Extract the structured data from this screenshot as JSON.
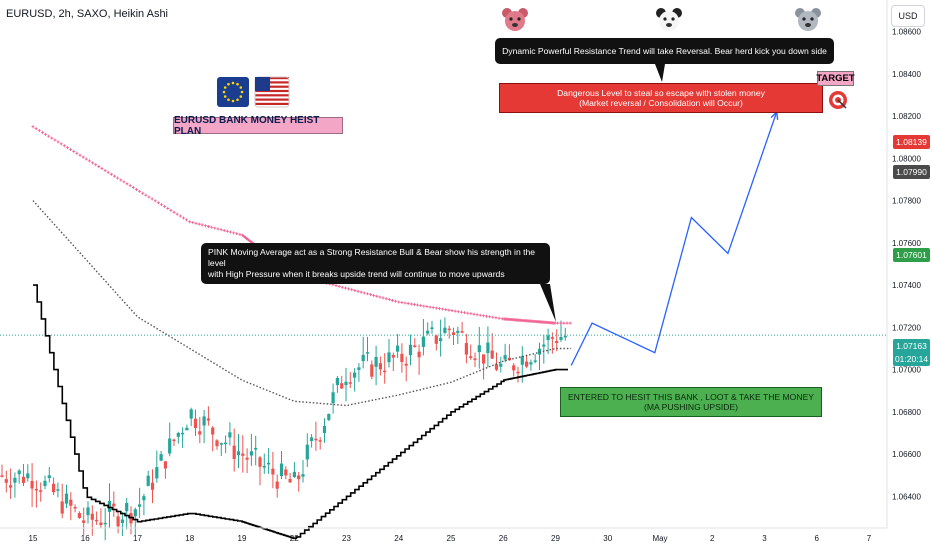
{
  "header": {
    "symbol_title": "EURUSD, 2h, SAXO, Heikin Ashi",
    "currency": "USD"
  },
  "annotations": {
    "plan_title": "EURUSD BANK MONEY HEIST PLAN",
    "resistance_note": "Dynamic Powerful Resistance Trend will take Reversal. Bear herd kick you down side",
    "danger_line1": "Dangerous Level to steal so escape with stolen money",
    "danger_line2": "(Market reversal / Consolidation will Occur)",
    "pink_ma_line1": "PINK Moving Average act as a Strong Resistance Bull & Bear show his strength in the level",
    "pink_ma_line2": "with High Pressure when it breaks upside trend will continue to move upwards",
    "entry_line1": "ENTERED TO HESIT THIS BANK , LOOT & TAKE THE MONEY",
    "entry_line2": "(MA PUSHING UPSIDE)",
    "target": "TARGET"
  },
  "price_tags": {
    "target_price": "1.08139",
    "danger_price": "1.07990",
    "pink_ma_price": "1.07601",
    "current_price": "1.07163",
    "countdown": "01:20:14"
  },
  "colors": {
    "bull_candle": "#26a69a",
    "bear_candle": "#ef5350",
    "pink_ma": "#f06292",
    "gray_ma": "#555555",
    "black_ma": "#000000",
    "projection": "#2962ff",
    "current_price_line": "#26a69a"
  },
  "icons": [
    "flag-eu-icon",
    "flag-us-icon",
    "bear-emoji-icon",
    "panda-emoji-icon",
    "koala-emoji-icon",
    "target-icon"
  ],
  "chart_data": {
    "type": "candlestick",
    "title": "EURUSD, 2h, SAXO, Heikin Ashi",
    "ylim": [
      1.0625,
      1.0875
    ],
    "y_ticks": [
      1.064,
      1.066,
      1.068,
      1.07,
      1.072,
      1.074,
      1.076,
      1.078,
      1.08,
      1.082,
      1.084,
      1.086
    ],
    "x_ticks": [
      "15",
      "16",
      "17",
      "18",
      "19",
      "22",
      "23",
      "24",
      "25",
      "26",
      "29",
      "30",
      "May",
      "2",
      "3",
      "6",
      "7"
    ],
    "anchor_points": [
      {
        "day": 15,
        "price": 1.065
      },
      {
        "day": 16,
        "price": 1.0628
      },
      {
        "day": 17,
        "price": 1.0635
      },
      {
        "day": 18,
        "price": 1.068
      },
      {
        "day": 19,
        "price": 1.066
      },
      {
        "day": 22,
        "price": 1.0645
      },
      {
        "day": 23,
        "price": 1.07
      },
      {
        "day": 24,
        "price": 1.0705
      },
      {
        "day": 25,
        "price": 1.072
      },
      {
        "day": 26,
        "price": 1.07
      },
      {
        "day": 29,
        "price": 1.0716
      }
    ],
    "pink_ma": [
      {
        "day": 15,
        "price": 1.0815
      },
      {
        "day": 18,
        "price": 1.077
      },
      {
        "day": 22,
        "price": 1.0745
      },
      {
        "day": 24,
        "price": 1.0732
      },
      {
        "day": 26,
        "price": 1.0724
      },
      {
        "day": 29,
        "price": 1.0722
      }
    ],
    "gray_ma": [
      {
        "day": 15,
        "price": 1.078
      },
      {
        "day": 17,
        "price": 1.0725
      },
      {
        "day": 19,
        "price": 1.0695
      },
      {
        "day": 22,
        "price": 1.0685
      },
      {
        "day": 23,
        "price": 1.0683
      },
      {
        "day": 24,
        "price": 1.0688
      },
      {
        "day": 25,
        "price": 1.0694
      },
      {
        "day": 26,
        "price": 1.0704
      },
      {
        "day": 29,
        "price": 1.071
      }
    ],
    "black_ma": [
      {
        "day": 15,
        "price": 1.074
      },
      {
        "day": 16,
        "price": 1.064
      },
      {
        "day": 17,
        "price": 1.0628
      },
      {
        "day": 18,
        "price": 1.0632
      },
      {
        "day": 19,
        "price": 1.0628
      },
      {
        "day": 22,
        "price": 1.062
      },
      {
        "day": 23,
        "price": 1.064
      },
      {
        "day": 24,
        "price": 1.066
      },
      {
        "day": 25,
        "price": 1.068
      },
      {
        "day": 26,
        "price": 1.0695
      },
      {
        "day": 29,
        "price": 1.07
      }
    ],
    "projection": [
      {
        "day": 29.3,
        "price": 1.0702
      },
      {
        "day": 29.7,
        "price": 1.0722
      },
      {
        "day": 30.9,
        "price": 1.0708
      },
      {
        "day": 31.6,
        "price": 1.0772
      },
      {
        "day": 32.3,
        "price": 1.0755
      },
      {
        "day": 33.7,
        "price": 1.0822
      }
    ]
  }
}
